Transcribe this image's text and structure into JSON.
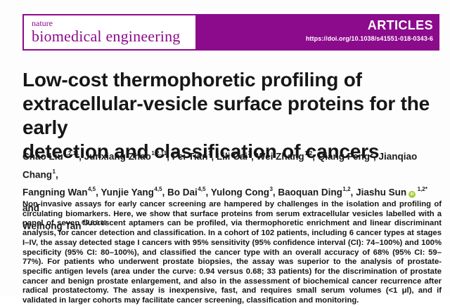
{
  "journal": {
    "name_line1": "nature",
    "name_line2": "biomedical engineering",
    "banner_label": "ARTICLES",
    "doi": "https://doi.org/10.1038/s41551-018-0343-6"
  },
  "article": {
    "title_lines": [
      "Low-cost thermophoretic profiling of",
      "extracellular-vesicle surface proteins for the early",
      "detection and classification of cancers"
    ],
    "authors": {
      "lines": [
        [
          {
            "name": "Chao Liu",
            "sup": "1,2,11",
            "sep": ", "
          },
          {
            "name": "Junxiang Zhao",
            "sup": "1,2,11",
            "sep": ", "
          },
          {
            "name": "Fei Tian",
            "sup": "1",
            "sep": ", "
          },
          {
            "name": "Lili Cai",
            "sup": "3",
            "sep": ", "
          },
          {
            "name": "Wei Zhang",
            "sup": "1,2",
            "sep": ", "
          },
          {
            "name": "Qiang Feng",
            "sup": "1",
            "sep": ", "
          },
          {
            "name": "Jianqiao Chang",
            "sup": "1",
            "sep": ","
          }
        ],
        [
          {
            "name": "Fangning Wan",
            "sup": "4,5",
            "sep": ", "
          },
          {
            "name": "Yunjie Yang",
            "sup": "4,5",
            "sep": ", "
          },
          {
            "name": "Bo Dai",
            "sup": "4,5",
            "sep": ", "
          },
          {
            "name": "Yulong Cong",
            "sup": "3",
            "sep": ", "
          },
          {
            "name": "Baoquan Ding",
            "sup": "1,2",
            "sep": ", "
          },
          {
            "name": "Jiashu Sun",
            "orcid": true,
            "sup": "1,2*",
            "sep": " and"
          }
        ],
        [
          {
            "name": "Weihong Tan",
            "sup": "6,7,8,9,10",
            "sep": ""
          }
        ]
      ],
      "orcid_icon_label": "iD"
    },
    "abstract": "Non-invasive assays for early cancer screening are hampered by challenges in the isolation and profiling of circulating biomarkers. Here, we show that surface proteins from serum extracellular vesicles labelled with a panel of seven fluorescent aptamers can be profiled, via thermophoretic enrichment and linear discriminant analysis, for cancer detection and classification. In a cohort of 102 patients, including 6 cancer types at stages I–IV, the assay detected stage I cancers with 95% sensitivity (95% confidence interval (CI): 74–100%) and 100% specificity (95% CI: 80–100%), and classified the cancer type with an overall accuracy of 68% (95% CI: 59–77%). For patients who underwent prostate biopsies, the assay was superior to the analysis of prostate-specific antigen levels (area under the curve: 0.94 versus 0.68; 33 patients) for the discrimination of prostate cancer and benign prostate enlargement, and also in the assessment of biochemical cancer recurrence after radical prostatectomy. The assay is inexpensive, fast, and requires small serum volumes (<1 μl), and if validated in larger cohorts may facilitate cancer screening, classification and monitoring."
  },
  "colors": {
    "brand_purple": "#8C0A8C",
    "orcid_green": "#A6CE39",
    "text_dark": "#161616"
  }
}
